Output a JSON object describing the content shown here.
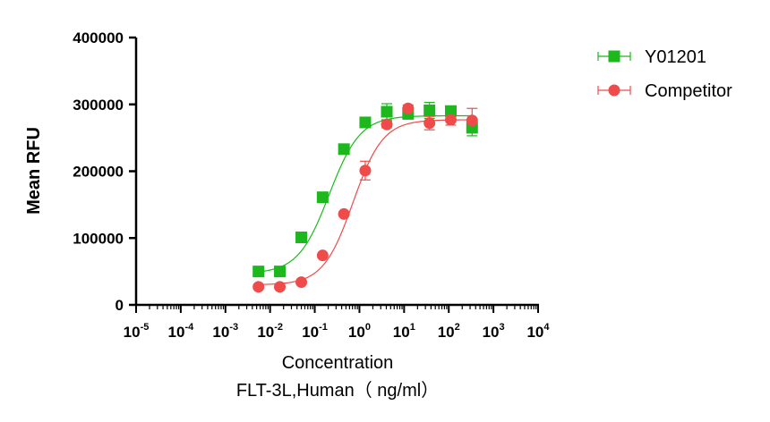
{
  "chart_data": {
    "type": "scatter",
    "xscale": "log",
    "xlim": [
      1e-05,
      10000
    ],
    "ylim": [
      0,
      400000
    ],
    "x_tick_exponents": [
      "-5",
      "-4",
      "-3",
      "-2",
      "-1",
      "0",
      "1",
      "2",
      "3",
      "4"
    ],
    "x_tick_base": "10",
    "y_ticks": [
      "0",
      "100000",
      "200000",
      "300000",
      "400000"
    ],
    "ylabel": "Mean RFU",
    "xlabel": "Concentration",
    "xlabel_line2": "FLT-3L,Human（ ng/ml）",
    "grid": false,
    "legend_position": "top-right",
    "series": [
      {
        "name": "Y01201",
        "marker": "square",
        "color": "#1db81d",
        "fit": {
          "bottom": 47000,
          "top": 283000,
          "ec50": 0.21,
          "hill": 1.25
        },
        "points": [
          {
            "x": 0.0055,
            "y": 50000,
            "err": 0
          },
          {
            "x": 0.0165,
            "y": 50000,
            "err": 0
          },
          {
            "x": 0.05,
            "y": 101000,
            "err": 0
          },
          {
            "x": 0.15,
            "y": 161000,
            "err": 0
          },
          {
            "x": 0.45,
            "y": 233000,
            "err": 0
          },
          {
            "x": 1.35,
            "y": 273000,
            "err": 0
          },
          {
            "x": 4.1,
            "y": 289000,
            "err": 12000
          },
          {
            "x": 12.3,
            "y": 286000,
            "err": 8000
          },
          {
            "x": 37,
            "y": 291000,
            "err": 12000
          },
          {
            "x": 111,
            "y": 290000,
            "err": 6000
          },
          {
            "x": 333,
            "y": 265000,
            "err": 12000
          }
        ]
      },
      {
        "name": "Competitor",
        "marker": "circle",
        "color": "#ef4b4b",
        "fit": {
          "bottom": 30000,
          "top": 277000,
          "ec50": 0.72,
          "hill": 1.3
        },
        "points": [
          {
            "x": 0.0055,
            "y": 27000,
            "err": 0
          },
          {
            "x": 0.0165,
            "y": 27000,
            "err": 0
          },
          {
            "x": 0.05,
            "y": 34000,
            "err": 0
          },
          {
            "x": 0.15,
            "y": 74000,
            "err": 0
          },
          {
            "x": 0.45,
            "y": 136000,
            "err": 0
          },
          {
            "x": 1.35,
            "y": 201000,
            "err": 14000
          },
          {
            "x": 4.1,
            "y": 270000,
            "err": 5000
          },
          {
            "x": 12.3,
            "y": 294000,
            "err": 5000
          },
          {
            "x": 37,
            "y": 272000,
            "err": 10000
          },
          {
            "x": 111,
            "y": 277000,
            "err": 8000
          },
          {
            "x": 333,
            "y": 276000,
            "err": 18000
          }
        ]
      }
    ]
  }
}
